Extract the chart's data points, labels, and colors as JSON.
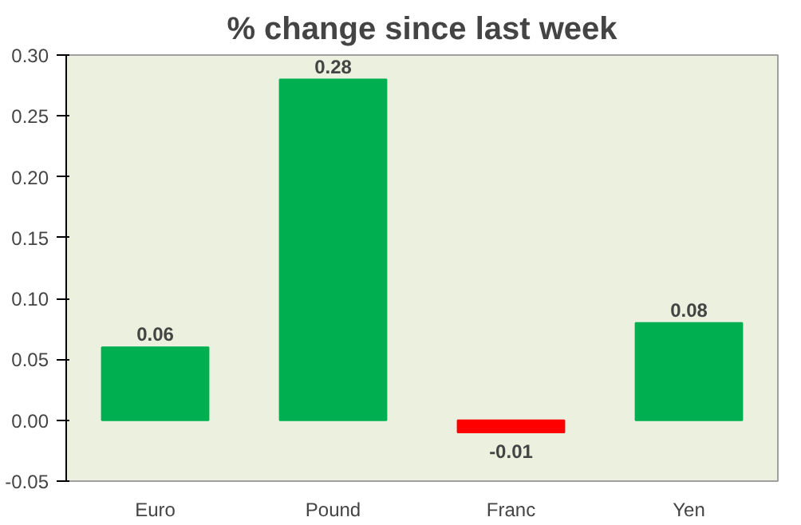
{
  "chart_data": {
    "type": "bar",
    "title": "% change since last week",
    "categories": [
      "Euro",
      "Pound",
      "Franc",
      "Yen"
    ],
    "values": [
      0.06,
      0.28,
      -0.01,
      0.08
    ],
    "colors": [
      "#00b050",
      "#00b050",
      "#ff0000",
      "#00b050"
    ],
    "ylim": [
      -0.05,
      0.3
    ],
    "yticks": [
      {
        "value": -0.05,
        "label": "-0.05"
      },
      {
        "value": 0,
        "label": "0.00"
      },
      {
        "value": 0.05,
        "label": "0.05"
      },
      {
        "value": 0.1,
        "label": "0.10"
      },
      {
        "value": 0.15,
        "label": "0.15"
      },
      {
        "value": 0.2,
        "label": "0.20"
      },
      {
        "value": 0.25,
        "label": "0.25"
      },
      {
        "value": 0.3,
        "label": "0.30"
      }
    ],
    "data_labels": true,
    "grid": false
  }
}
